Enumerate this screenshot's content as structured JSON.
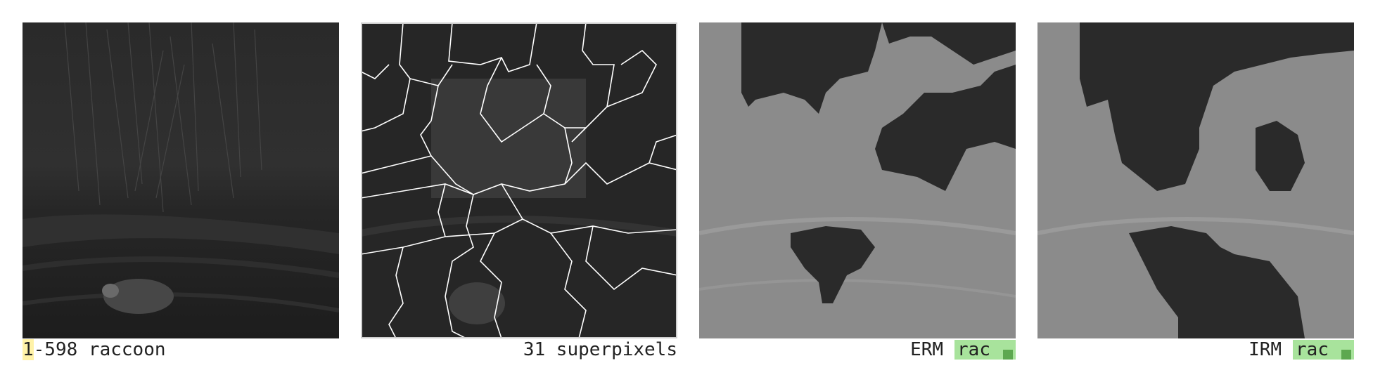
{
  "panels": [
    {
      "caption_highlight": "1",
      "caption_rest": "-598 raccoon"
    },
    {
      "caption": "31 superpixels"
    },
    {
      "method": "ERM",
      "label": "rac"
    },
    {
      "method": "IRM",
      "label": "rac"
    }
  ],
  "colors": {
    "highlight": "#fff2a8",
    "label_bg": "#a8e39c",
    "label_square": "#5da850",
    "mask_gray": "#8a8a8a",
    "contour": "#ffffff"
  }
}
